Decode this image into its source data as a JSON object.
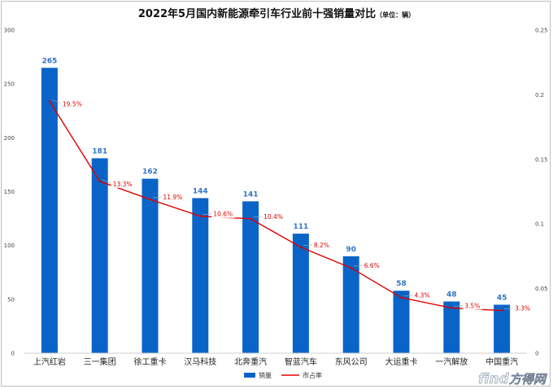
{
  "chart_data": {
    "type": "bar",
    "title": "2022年5月国内新能源牵引车行业前十强销量对比",
    "title_unit": "（单位：辆）",
    "categories": [
      "上汽红岩",
      "三一集团",
      "徐工重卡",
      "汉马科技",
      "北奔重汽",
      "智蓝汽车",
      "东风公司",
      "大运重卡",
      "一汽解放",
      "中国重汽"
    ],
    "series": [
      {
        "name": "销量",
        "kind": "bar",
        "axis": "left",
        "values": [
          265,
          181,
          162,
          144,
          141,
          111,
          90,
          58,
          48,
          45
        ],
        "color": "#0a64c8"
      },
      {
        "name": "市占率",
        "kind": "line",
        "axis": "right",
        "values": [
          0.195,
          0.133,
          0.119,
          0.106,
          0.104,
          0.082,
          0.066,
          0.043,
          0.035,
          0.033
        ],
        "labels": [
          "19.5%",
          "13.3%",
          "11.9%",
          "10.6%",
          "10.4%",
          "8.2%",
          "6.6%",
          "4.3%",
          "3.5%",
          "3.3%"
        ],
        "color": "#e00000"
      }
    ],
    "ylim": [
      0,
      300
    ],
    "yticks": [
      "0",
      "50",
      "100",
      "150",
      "200",
      "250",
      "300"
    ],
    "y2lim": [
      0,
      0.25
    ],
    "y2ticks": [
      "0",
      "0.05",
      "0.1",
      "0.15",
      "0.2",
      "0.25"
    ],
    "legend_position": "bottom",
    "grid": false
  },
  "watermark": {
    "text_en": "find",
    "text_cn": "方得网"
  }
}
